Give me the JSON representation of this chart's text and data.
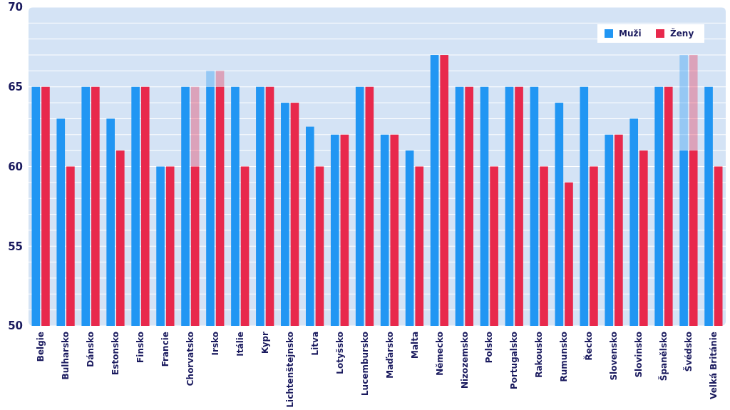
{
  "chart_data": {
    "type": "bar",
    "categories": [
      "Belgie",
      "Bulharsko",
      "Dánsko",
      "Estonsko",
      "Finsko",
      "Francie",
      "Chorvatsko",
      "Irsko",
      "Itálie",
      "Kypr",
      "Lichtenštejnsko",
      "Litva",
      "Lotyšsko",
      "Lucembursko",
      "Maďarsko",
      "Malta",
      "Německo",
      "Nizozemsko",
      "Polsko",
      "Portugalsko",
      "Rakousko",
      "Rumunsko",
      "Řecko",
      "Slovensko",
      "Slovinsko",
      "Španělsko",
      "Švédsko",
      "Velká Británie"
    ],
    "series": [
      {
        "name": "Muži",
        "color": "#2196f3",
        "values": [
          65,
          63,
          65,
          63,
          65,
          60,
          65,
          65,
          65,
          65,
          64,
          62.5,
          62,
          65,
          62,
          61,
          67,
          65,
          65,
          65,
          65,
          64,
          65,
          62,
          63,
          65,
          61,
          65
        ],
        "errors": [
          null,
          null,
          null,
          null,
          null,
          null,
          null,
          [
            65,
            66
          ],
          null,
          null,
          null,
          null,
          null,
          null,
          null,
          null,
          null,
          null,
          null,
          null,
          null,
          null,
          null,
          null,
          null,
          null,
          [
            61,
            67
          ],
          null
        ]
      },
      {
        "name": "Ženy",
        "color": "#e8294c",
        "values": [
          65,
          60,
          65,
          61,
          65,
          60,
          60,
          65,
          60,
          65,
          64,
          60,
          62,
          65,
          62,
          60,
          67,
          65,
          60,
          65,
          60,
          59,
          60,
          62,
          61,
          65,
          61,
          60
        ],
        "errors": [
          null,
          null,
          null,
          null,
          null,
          null,
          [
            60,
            65
          ],
          [
            65,
            66
          ],
          null,
          null,
          null,
          null,
          null,
          null,
          null,
          null,
          null,
          null,
          null,
          null,
          null,
          null,
          null,
          null,
          null,
          null,
          [
            61,
            67
          ],
          null
        ]
      }
    ],
    "ylim": [
      50,
      70
    ],
    "yticks": [
      50,
      {
        "value": 51,
        "label": null
      },
      {
        "value": 52,
        "label": null
      },
      {
        "value": 53,
        "label": null
      },
      {
        "value": 54,
        "label": null
      },
      55,
      {
        "value": 56,
        "label": null
      },
      {
        "value": 57,
        "label": null
      },
      {
        "value": 58,
        "label": null
      },
      {
        "value": 59,
        "label": null
      },
      60,
      {
        "value": 61,
        "label": null
      },
      {
        "value": 62,
        "label": null
      },
      {
        "value": 63,
        "label": null
      },
      {
        "value": 64,
        "label": null
      },
      65,
      {
        "value": 66,
        "label": null
      },
      {
        "value": 67,
        "label": null
      },
      {
        "value": 68,
        "label": null
      },
      {
        "value": 69,
        "label": null
      },
      70
    ],
    "grid": true,
    "legend": "top right"
  }
}
